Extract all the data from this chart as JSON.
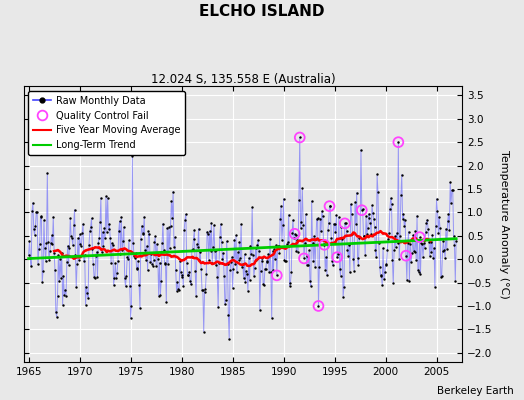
{
  "title": "ELCHO ISLAND",
  "subtitle": "12.024 S, 135.558 E (Australia)",
  "credit": "Berkeley Earth",
  "ylabel": "Temperature Anomaly (°C)",
  "xlim": [
    1964.5,
    2007.5
  ],
  "ylim": [
    -2.2,
    3.7
  ],
  "yticks": [
    -2,
    -1.5,
    -1,
    -0.5,
    0,
    0.5,
    1,
    1.5,
    2,
    2.5,
    3,
    3.5
  ],
  "xticks": [
    1965,
    1970,
    1975,
    1980,
    1985,
    1990,
    1995,
    2000,
    2005
  ],
  "background_color": "#e8e8e8",
  "grid_color": "#ffffff",
  "raw_line_color": "#4444ff",
  "raw_line_alpha": 0.5,
  "raw_marker_color": "#000000",
  "moving_avg_color": "#ff0000",
  "trend_color": "#00cc00",
  "qc_fail_color": "#ff44ff",
  "seed": 12345
}
